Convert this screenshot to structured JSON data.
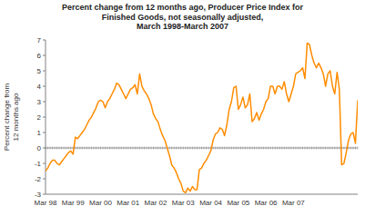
{
  "chart_data": {
    "type": "line",
    "title": "Percent change from 12 months ago, Producer Price Index for\nFinished Goods, not seasonally adjusted,\nMarch 1998-March 2007",
    "ylabel": "Percent change from\n12 months ago",
    "categories": [
      "Mar 98",
      null,
      null,
      null,
      null,
      null,
      null,
      null,
      null,
      null,
      null,
      null,
      "Mar 99",
      null,
      null,
      null,
      null,
      null,
      null,
      null,
      null,
      null,
      null,
      null,
      "Mar 00",
      null,
      null,
      null,
      null,
      null,
      null,
      null,
      null,
      null,
      null,
      null,
      "Mar 01",
      null,
      null,
      null,
      null,
      null,
      null,
      null,
      null,
      null,
      null,
      null,
      "Mar 02",
      null,
      null,
      null,
      null,
      null,
      null,
      null,
      null,
      null,
      null,
      null,
      "Mar 03",
      null,
      null,
      null,
      null,
      null,
      null,
      null,
      null,
      null,
      null,
      null,
      "Mar 04",
      null,
      null,
      null,
      null,
      null,
      null,
      null,
      null,
      null,
      null,
      null,
      "Mar 05",
      null,
      null,
      null,
      null,
      null,
      null,
      null,
      null,
      null,
      null,
      null,
      "Mar 06",
      null,
      null,
      null,
      null,
      null,
      null,
      null,
      null,
      null,
      null,
      null,
      "Mar 07",
      null,
      null,
      null,
      null,
      null,
      null,
      null,
      null,
      null,
      null,
      null,
      null,
      null,
      null,
      null,
      null,
      null,
      null,
      null,
      null,
      null,
      null,
      null,
      null,
      null,
      null,
      null,
      null
    ],
    "values": [
      -1.5,
      -1.3,
      -1.0,
      -0.8,
      -0.8,
      -1.0,
      -1.1,
      -0.9,
      -0.7,
      -0.5,
      -0.3,
      -0.2,
      -0.4,
      0.7,
      0.6,
      0.8,
      1.0,
      1.2,
      1.5,
      1.8,
      2.0,
      2.3,
      2.6,
      3.0,
      3.1,
      3.0,
      2.6,
      3.0,
      3.2,
      3.5,
      3.8,
      4.2,
      4.1,
      3.8,
      3.5,
      3.2,
      3.5,
      3.8,
      3.9,
      4.1,
      3.5,
      4.8,
      4.0,
      3.7,
      3.5,
      3.2,
      2.8,
      2.2,
      1.9,
      1.7,
      1.2,
      0.8,
      0.5,
      0.0,
      -0.5,
      -1.1,
      -1.3,
      -1.6,
      -2.0,
      -2.3,
      -2.8,
      -2.9,
      -2.6,
      -2.8,
      -2.5,
      -2.7,
      -2.7,
      -1.4,
      -1.3,
      -1.0,
      -0.8,
      -0.5,
      -0.2,
      0.5,
      0.9,
      1.0,
      1.3,
      1.2,
      0.8,
      1.5,
      2.5,
      3.0,
      3.9,
      4.0,
      2.5,
      2.8,
      3.3,
      2.6,
      2.8,
      3.5,
      1.7,
      1.9,
      2.3,
      1.8,
      2.2,
      2.5,
      3.0,
      3.2,
      4.0,
      4.0,
      3.5,
      4.0,
      4.0,
      3.8,
      4.3,
      3.5,
      3.0,
      3.5,
      4.0,
      4.8,
      4.9,
      5.0,
      5.2,
      4.5,
      6.8,
      6.7,
      6.0,
      5.5,
      5.2,
      5.5,
      5.2,
      4.8,
      4.0,
      4.8,
      5.0,
      4.0,
      3.5,
      4.9,
      3.8,
      -1.1,
      -1.0,
      -0.3,
      0.5,
      0.9,
      1.0,
      0.3,
      3.1
    ],
    "color": "#FF8C00",
    "ylim": [
      -3,
      7
    ],
    "yticks": [
      -3,
      -2,
      -1,
      0,
      1,
      2,
      3,
      4,
      5,
      6,
      7
    ],
    "grid": false
  }
}
